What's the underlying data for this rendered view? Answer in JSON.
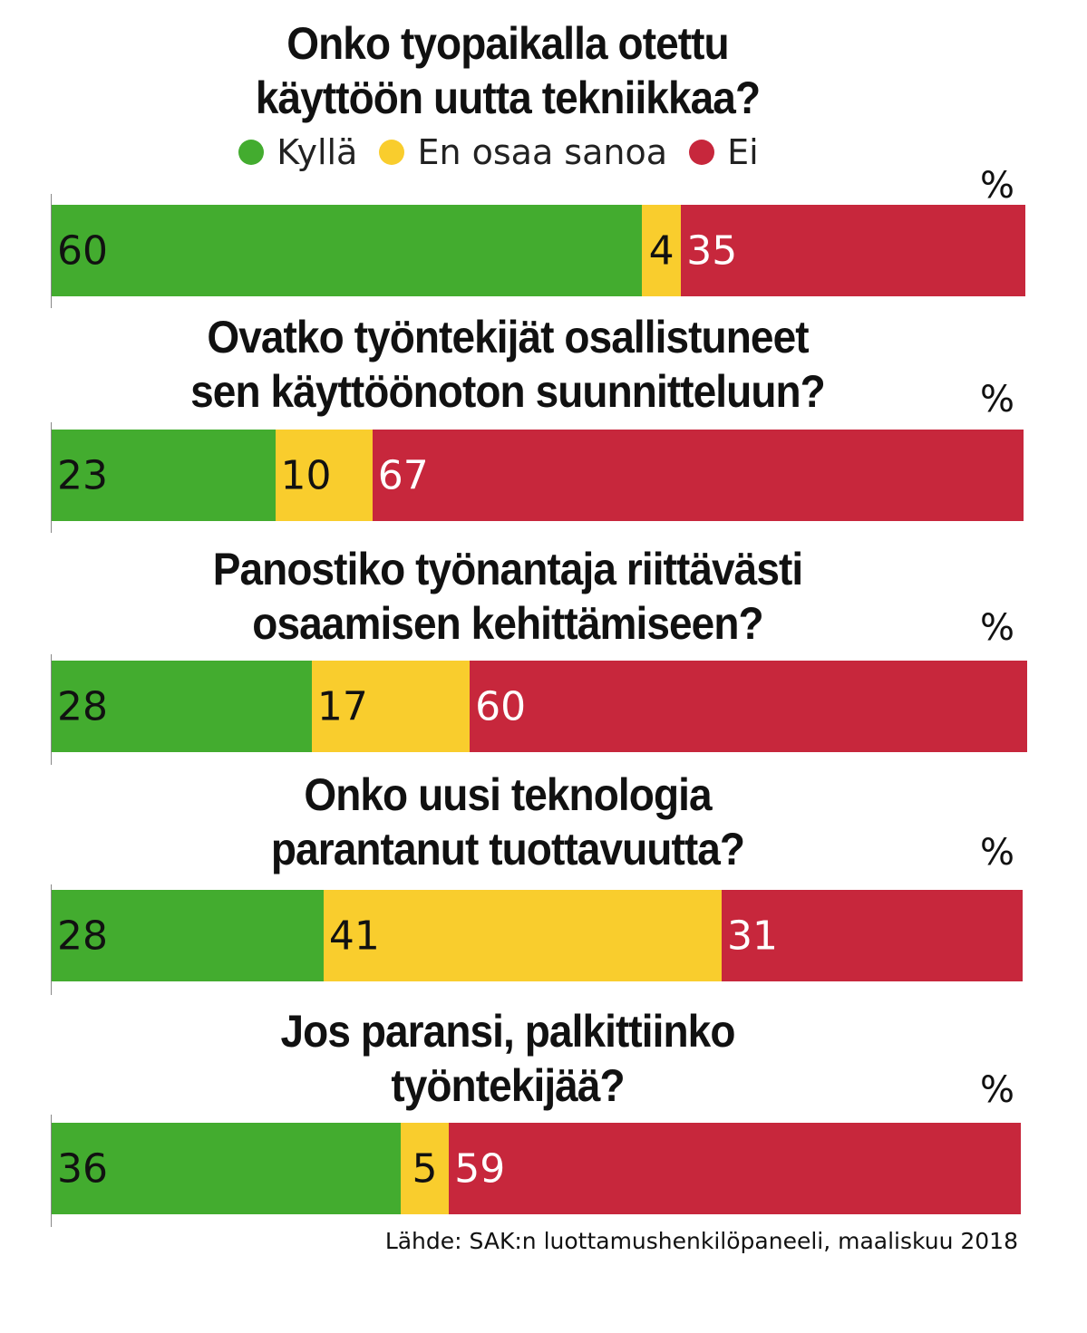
{
  "colors": {
    "yes": "#43ac2f",
    "unsure": "#f9cd2d",
    "no": "#c7273c"
  },
  "legend": [
    {
      "label": "Kyllä",
      "color": "#43ac2f"
    },
    {
      "label": "En osaa sanoa",
      "color": "#f9cd2d"
    },
    {
      "label": "Ei",
      "color": "#c7273c"
    }
  ],
  "unit": "%",
  "source": "Lähde: SAK:n luottamushenkilöpaneeli, maaliskuu 2018",
  "chart_data": {
    "type": "bar",
    "orientation": "horizontal-stacked",
    "categories": [
      "Onko tyopaikalla otettu käyttöön uutta tekniikkaa?",
      "Ovatko työntekijät osallistuneet sen käyttöönoton suunnitteluun?",
      "Panostiko työnantaja riittävästi osaamisen kehittämiseen?",
      "Onko uusi teknologia parantanut tuottavuutta?",
      "Jos paransi, palkittiinko työntekijää?"
    ],
    "series": [
      {
        "name": "Kyllä",
        "color": "#43ac2f",
        "values": [
          60,
          23,
          28,
          28,
          36
        ]
      },
      {
        "name": "En osaa sanoa",
        "color": "#f9cd2d",
        "values": [
          4,
          10,
          17,
          41,
          5
        ]
      },
      {
        "name": "Ei",
        "color": "#c7273c",
        "values": [
          35,
          67,
          60,
          31,
          59
        ]
      }
    ],
    "unit": "%"
  },
  "questions": [
    {
      "line1": "Onko tyopaikalla otettu",
      "line2": "käyttöön uutta tekniikkaa?"
    },
    {
      "line1": "Ovatko työntekijät osallistuneet",
      "line2": "sen käyttöönoton suunnitteluun?"
    },
    {
      "line1": "Panostiko työnantaja riittävästi",
      "line2": "osaamisen kehittämiseen?"
    },
    {
      "line1": "Onko uusi teknologia",
      "line2": "parantanut tuottavuutta?"
    },
    {
      "line1": "Jos paransi, palkittiinko",
      "line2": "työntekijää?"
    }
  ]
}
